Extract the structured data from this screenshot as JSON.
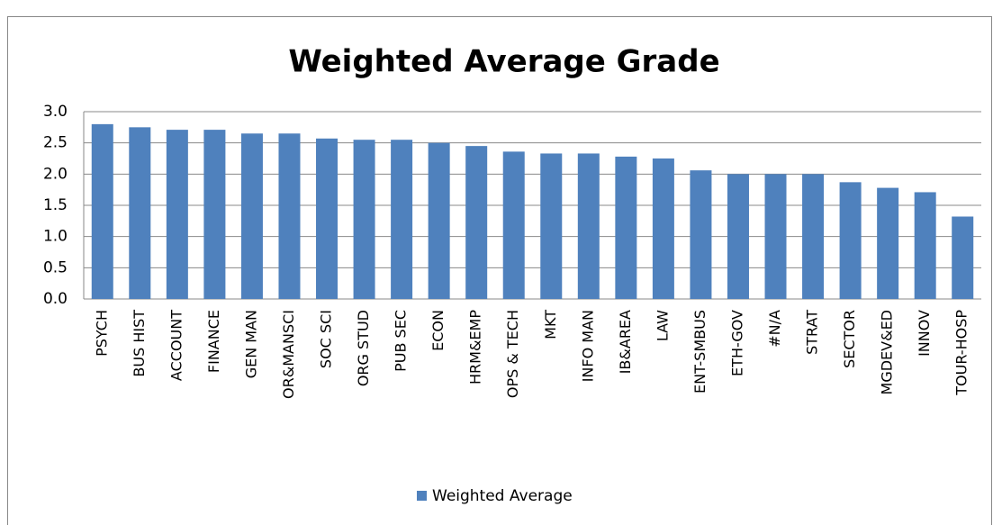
{
  "chart_data": {
    "type": "bar",
    "title": "Weighted Average Grade",
    "categories": [
      "PSYCH",
      "BUS HIST",
      "ACCOUNT",
      "FINANCE",
      "GEN MAN",
      "OR&MANSCI",
      "SOC SCI",
      "ORG STUD",
      "PUB SEC",
      "ECON",
      "HRM&EMP",
      "OPS & TECH",
      "MKT",
      "INFO MAN",
      "IB&AREA",
      "LAW",
      "ENT-SMBUS",
      "ETH-GOV",
      "#N/A",
      "STRAT",
      "SECTOR",
      "MGDEV&ED",
      "INNOV",
      "TOUR-HOSP"
    ],
    "series": [
      {
        "name": "Weighted Average",
        "color": "#4f81bd",
        "values": [
          2.8,
          2.75,
          2.71,
          2.71,
          2.65,
          2.65,
          2.57,
          2.55,
          2.55,
          2.5,
          2.45,
          2.36,
          2.33,
          2.33,
          2.28,
          2.25,
          2.06,
          2.0,
          2.0,
          2.0,
          1.87,
          1.78,
          1.71,
          1.32
        ]
      }
    ],
    "ylim": [
      0,
      3
    ],
    "yticks": [
      {
        "value": 0,
        "label": "0.0"
      },
      {
        "value": 0.5,
        "label": "0.5"
      },
      {
        "value": 1,
        "label": "1.0"
      },
      {
        "value": 1.5,
        "label": "1.5"
      },
      {
        "value": 2,
        "label": "2.0"
      },
      {
        "value": 2.5,
        "label": "2.5"
      },
      {
        "value": 3,
        "label": "3.0"
      }
    ],
    "grid": true,
    "legend": "bottom"
  }
}
